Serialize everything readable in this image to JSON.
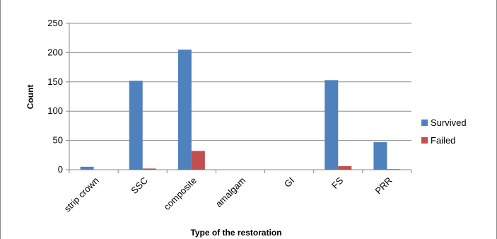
{
  "chart_data": {
    "type": "bar",
    "categories": [
      "strip crown",
      "SSC",
      "composite",
      "amalgam",
      "GI",
      "FS",
      "PRR"
    ],
    "series": [
      {
        "name": "Survived",
        "values": [
          5,
          152,
          205,
          0,
          0,
          153,
          47
        ],
        "color": "#4f81bd"
      },
      {
        "name": "Failed",
        "values": [
          0,
          2,
          32,
          0,
          0,
          6,
          1
        ],
        "color": "#c0504d"
      }
    ],
    "xlabel": "Type of the restoration",
    "ylabel": "Count",
    "ylim": [
      0,
      250
    ],
    "yticks": [
      0,
      50,
      100,
      150,
      200,
      250
    ],
    "grid": true,
    "legend": "right"
  }
}
